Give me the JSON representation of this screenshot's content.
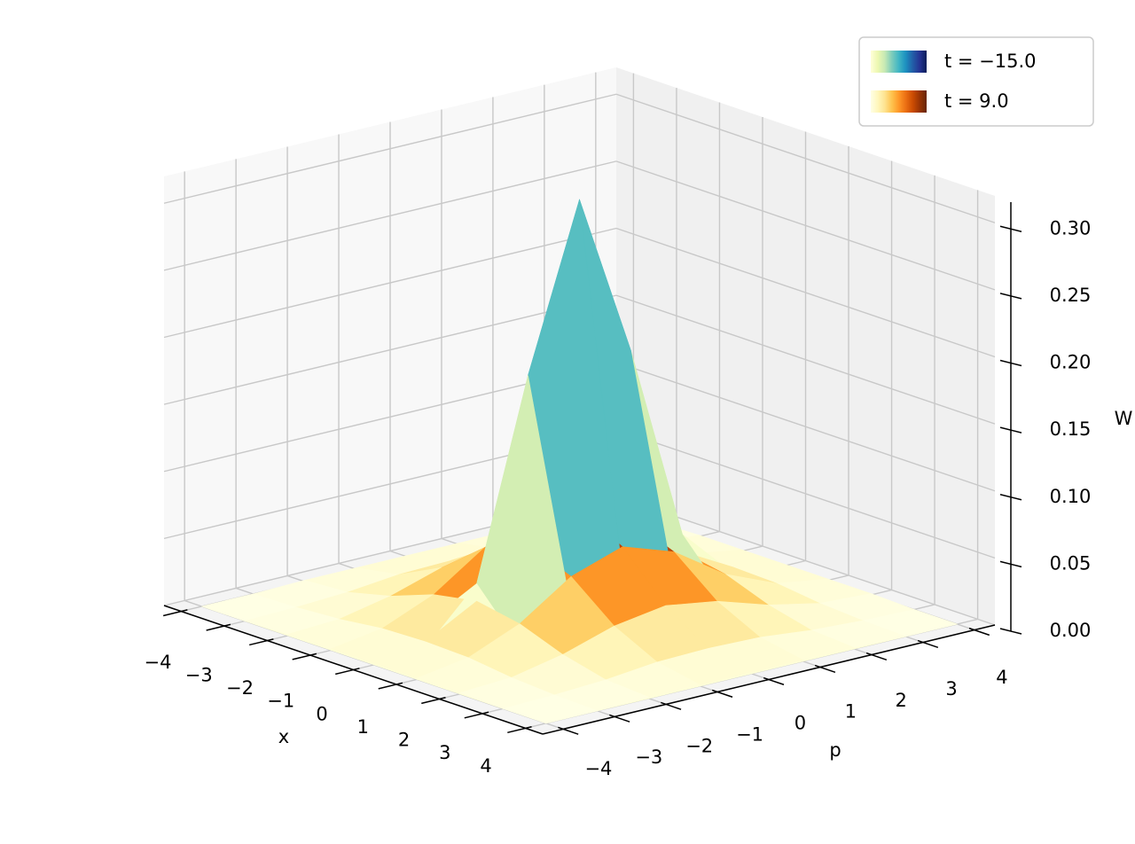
{
  "chart_data": {
    "type": "surface3d",
    "xlabel": "x",
    "ylabel": "p",
    "zlabel": "W",
    "x": [
      -4,
      -3,
      -2,
      -1,
      0,
      1,
      2,
      3,
      4
    ],
    "y": [
      -4,
      -3,
      -2,
      -1,
      0,
      1,
      2,
      3,
      4
    ],
    "xlim": [
      -4.4,
      4.4
    ],
    "ylim": [
      -4.4,
      4.4
    ],
    "zlim": [
      0,
      0.32
    ],
    "xticks": [
      {
        "value": -4,
        "label": "−4"
      },
      {
        "value": -3,
        "label": "−3"
      },
      {
        "value": -2,
        "label": "−2"
      },
      {
        "value": -1,
        "label": "−1"
      },
      0,
      1,
      2,
      3,
      4
    ],
    "yticks": [
      {
        "value": -4,
        "label": "−4"
      },
      {
        "value": -3,
        "label": "−3"
      },
      {
        "value": -2,
        "label": "−2"
      },
      {
        "value": -1,
        "label": "−1"
      },
      0,
      1,
      2,
      3,
      4
    ],
    "zticks": [
      {
        "value": 0,
        "label": "0.00"
      },
      {
        "value": 0.05,
        "label": "0.05"
      },
      {
        "value": 0.1,
        "label": "0.10"
      },
      {
        "value": 0.15,
        "label": "0.15"
      },
      {
        "value": 0.2,
        "label": "0.20"
      },
      {
        "value": 0.25,
        "label": "0.25"
      },
      {
        "value": 0.3,
        "label": "0.30"
      }
    ],
    "grid": true,
    "legend": "upper right",
    "series": [
      {
        "name": "t = −15.0",
        "colormap": [
          "#ffffd9",
          "#edf8b1",
          "#c7e9b4",
          "#7fcdbb",
          "#41b6c4",
          "#1d91c0",
          "#225ea8",
          "#253494",
          "#081d58"
        ],
        "values": [
          [
            0,
            0,
            0,
            0,
            0,
            0,
            0,
            0,
            0
          ],
          [
            0,
            0,
            0,
            0,
            0,
            0,
            0,
            0,
            0
          ],
          [
            0,
            0,
            0,
            0,
            0,
            0,
            0,
            0,
            0
          ],
          [
            0,
            0,
            0.006,
            0.025,
            0.042,
            0.025,
            0.006,
            0,
            0
          ],
          [
            0,
            0.003,
            0.042,
            0.188,
            0.31,
            0.188,
            0.042,
            0.003,
            0
          ],
          [
            0,
            0,
            0.006,
            0.025,
            0.042,
            0.025,
            0.006,
            0,
            0
          ],
          [
            0,
            0,
            0,
            0,
            0,
            0,
            0,
            0,
            0
          ],
          [
            0,
            0,
            0,
            0,
            0,
            0,
            0,
            0,
            0
          ],
          [
            0,
            0,
            0,
            0,
            0,
            0,
            0,
            0,
            0
          ]
        ]
      },
      {
        "name": "t = 9.0",
        "colormap": [
          "#ffffe5",
          "#fff7bc",
          "#fee391",
          "#fec44f",
          "#fe9929",
          "#ec7014",
          "#cc4c02",
          "#993404",
          "#662506"
        ],
        "values": [
          [
            0,
            0,
            0.001,
            0.001,
            0.001,
            0.001,
            0.001,
            0,
            0
          ],
          [
            0,
            0.001,
            0.003,
            0.007,
            0.008,
            0.007,
            0.003,
            0.001,
            0
          ],
          [
            0.001,
            0.003,
            0.011,
            0.023,
            0.029,
            0.023,
            0.011,
            0.003,
            0.001
          ],
          [
            0.001,
            0.007,
            0.023,
            0.049,
            0.062,
            0.049,
            0.023,
            0.007,
            0.001
          ],
          [
            0.001,
            0.008,
            0.029,
            0.062,
            0.08,
            0.062,
            0.029,
            0.008,
            0.001
          ],
          [
            0.001,
            0.007,
            0.023,
            0.049,
            0.062,
            0.049,
            0.023,
            0.007,
            0.001
          ],
          [
            0.001,
            0.003,
            0.011,
            0.023,
            0.029,
            0.023,
            0.011,
            0.003,
            0.001
          ],
          [
            0,
            0.001,
            0.003,
            0.007,
            0.008,
            0.007,
            0.003,
            0.001,
            0
          ],
          [
            0,
            0,
            0.001,
            0.001,
            0.001,
            0.001,
            0.001,
            0,
            0
          ]
        ]
      }
    ]
  }
}
